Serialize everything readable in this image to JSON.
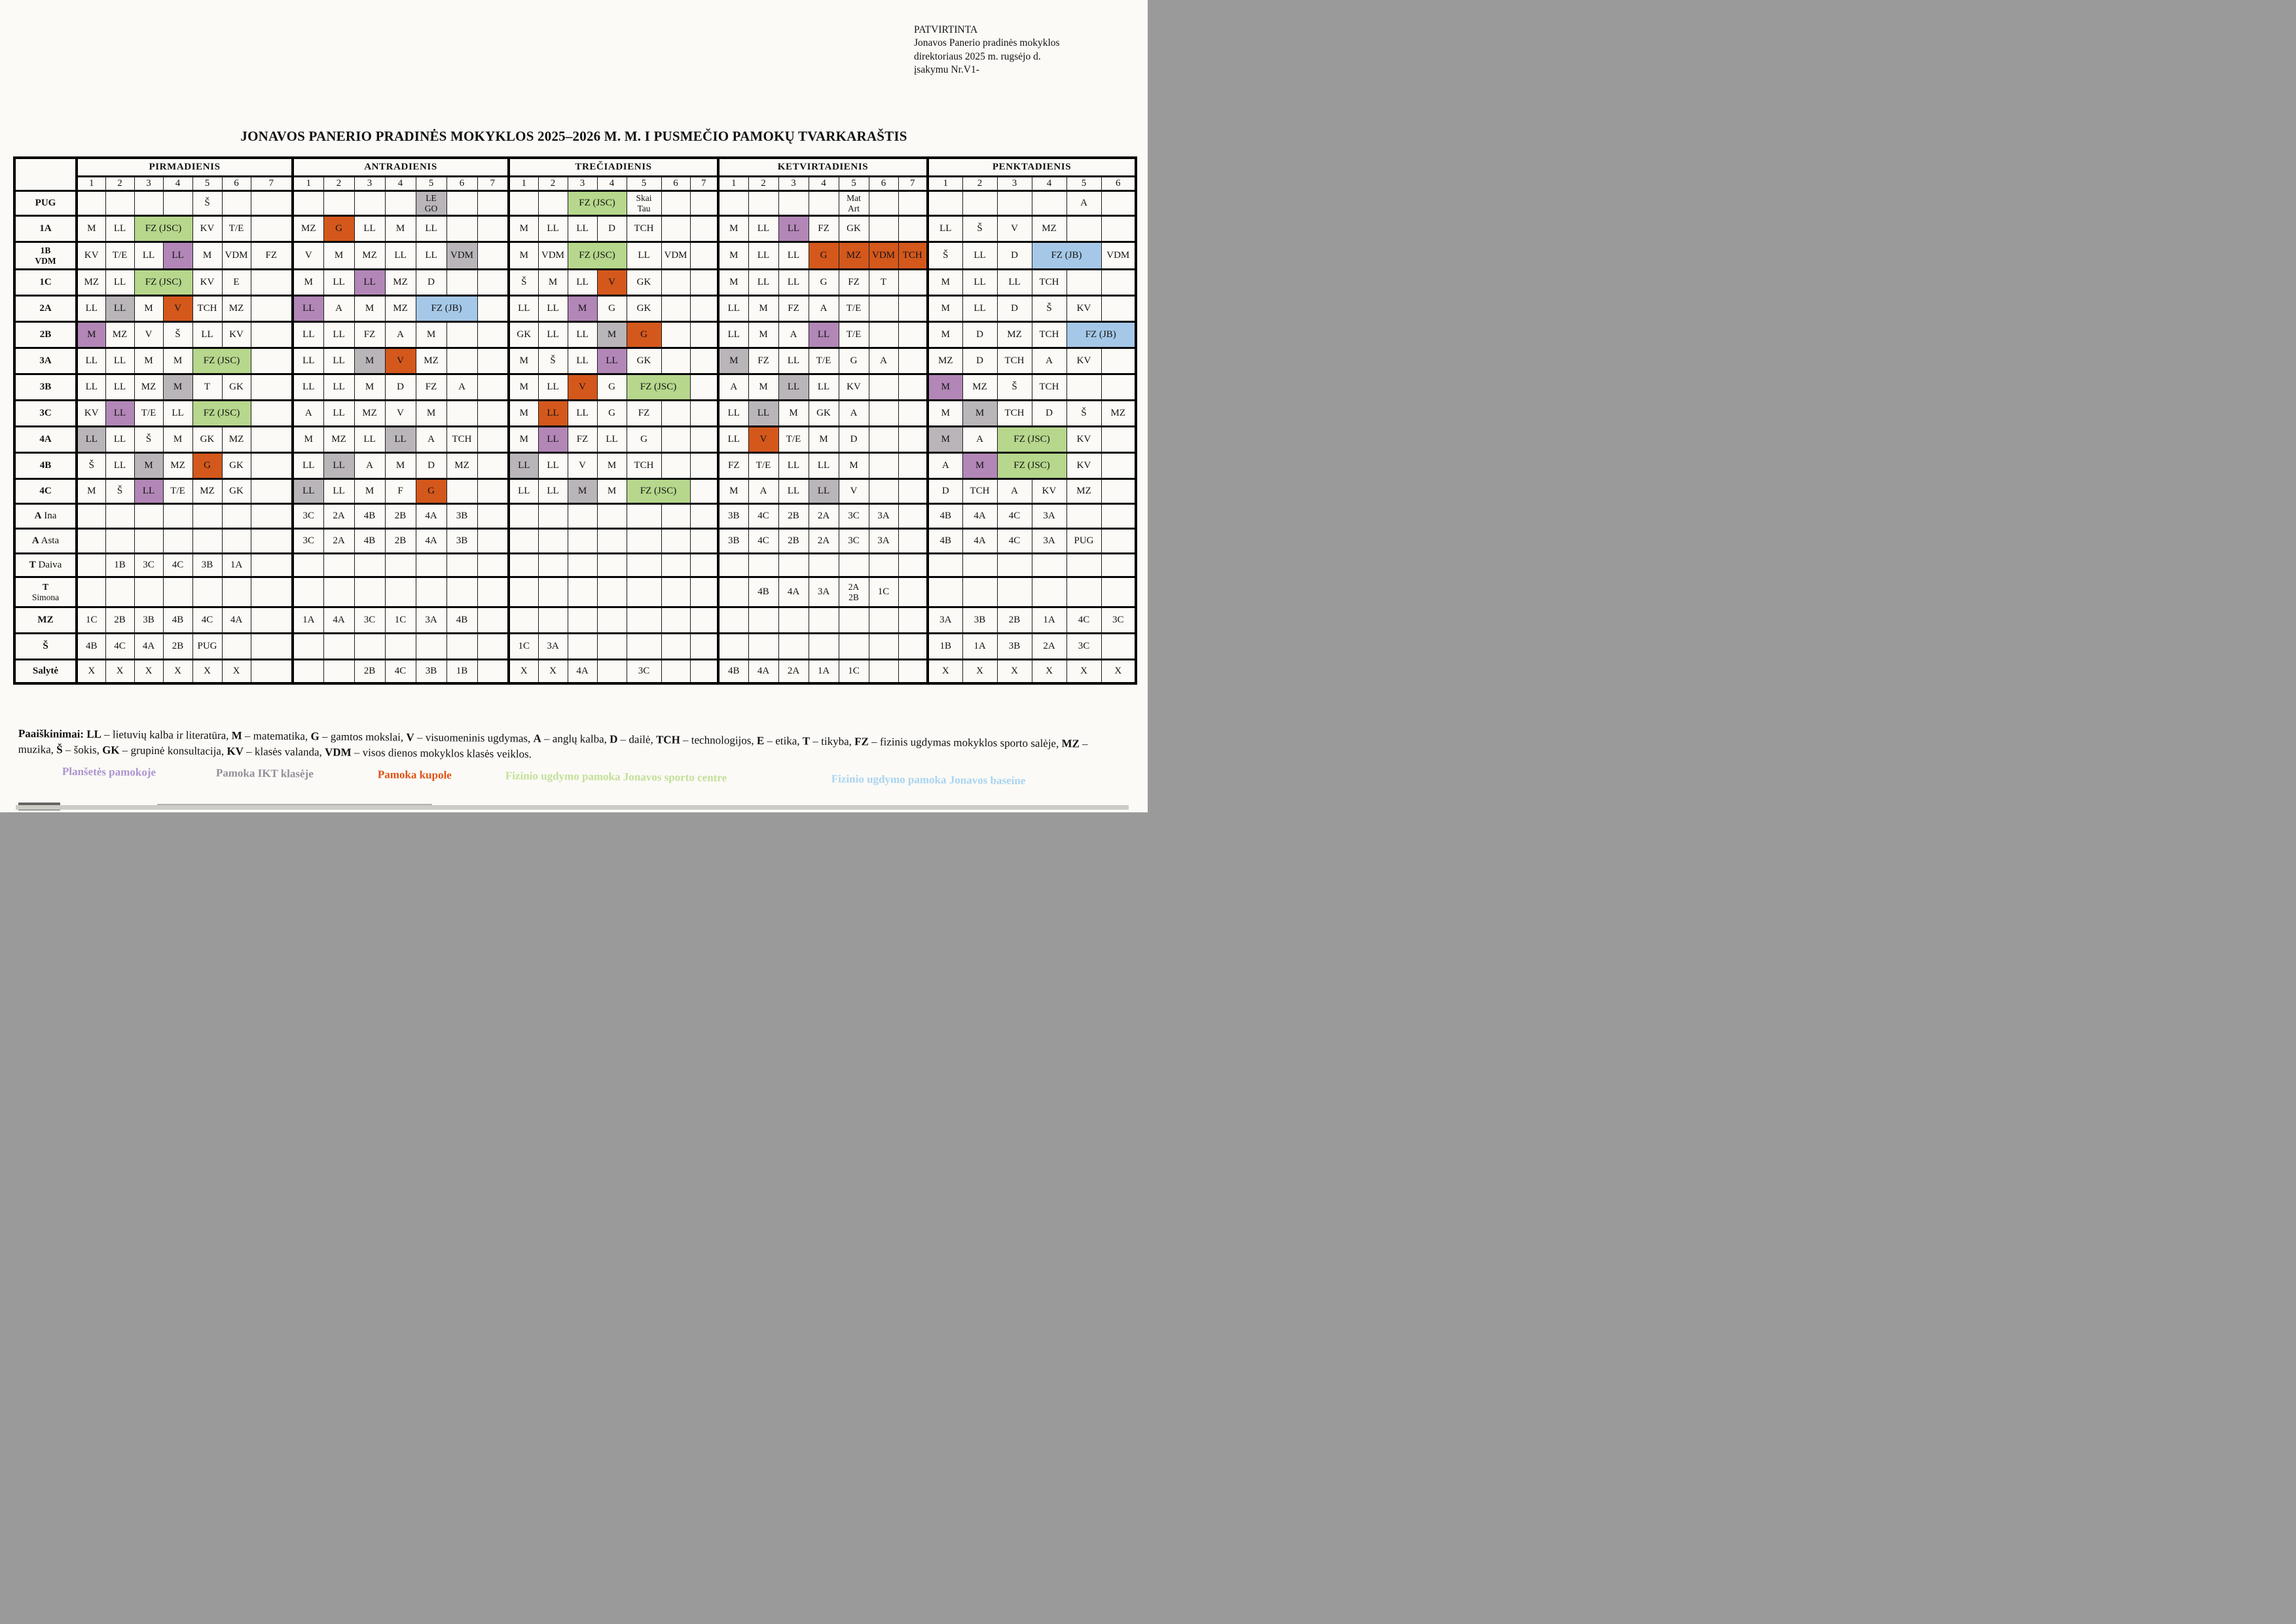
{
  "approval": {
    "line1": "PATVIRTINTA",
    "line2": "Jonavos Panerio pradinės mokyklos",
    "line3": "direktoriaus 2025 m. rugsėjo  d.",
    "line4": "įsakymu Nr.V1-"
  },
  "title": "JONAVOS PANERIO PRADINĖS MOKYKLOS 2025–2026 M. M. I PUSMEČIO PAMOKŲ TVARKARAŠTIS",
  "colors": {
    "purple": "#b287b7",
    "gray": "#b9b5b9",
    "orange": "#d4581c",
    "green": "#b6d78c",
    "blue": "#a6c8e8"
  },
  "days": [
    {
      "name": "PIRMADIENIS",
      "slots": 7
    },
    {
      "name": "ANTRADIENIS",
      "slots": 7
    },
    {
      "name": "TREČIADIENIS",
      "slots": 7
    },
    {
      "name": "KETVIRTADIENIS",
      "slots": 7
    },
    {
      "name": "PENKTADIENIS",
      "slots": 6
    }
  ],
  "rows": [
    {
      "label": {
        "b": "PUG",
        "r": ""
      },
      "cells": [
        [
          "",
          "",
          "",
          "",
          "Š",
          "",
          ""
        ],
        [
          "",
          "",
          "",
          "",
          {
            "t": "LE\nGO",
            "c": "gray"
          },
          "",
          ""
        ],
        [
          "",
          "",
          {
            "t": "FZ (JSC)",
            "c": "green",
            "s": 2
          },
          "Skai\nTau",
          "",
          ""
        ],
        [
          "",
          "",
          "",
          "",
          "Mat\nArt",
          "",
          ""
        ],
        [
          "",
          "",
          "",
          "",
          "A",
          ""
        ]
      ]
    },
    {
      "label": {
        "b": "1A",
        "r": ""
      },
      "cells": [
        [
          "M",
          "LL",
          {
            "t": "FZ (JSC)",
            "c": "green",
            "s": 2
          },
          "KV",
          "T/E",
          ""
        ],
        [
          "MZ",
          {
            "t": "G",
            "c": "orange"
          },
          "LL",
          "M",
          "LL",
          "",
          ""
        ],
        [
          "M",
          "LL",
          "LL",
          "D",
          "TCH",
          "",
          ""
        ],
        [
          "M",
          "LL",
          {
            "t": "LL",
            "c": "purple"
          },
          "FZ",
          "GK",
          "",
          ""
        ],
        [
          "LL",
          "Š",
          "V",
          "MZ",
          "",
          ""
        ]
      ]
    },
    {
      "label": {
        "b": "1B\nVDM",
        "r": ""
      },
      "cells": [
        [
          "KV",
          "T/E",
          "LL",
          {
            "t": "LL",
            "c": "purple"
          },
          "M",
          "VDM",
          "FZ"
        ],
        [
          "V",
          "M",
          "MZ",
          "LL",
          "LL",
          {
            "t": "VDM",
            "c": "gray"
          },
          ""
        ],
        [
          "M",
          "VDM",
          {
            "t": "FZ (JSC)",
            "c": "green",
            "s": 2
          },
          "LL",
          "VDM",
          ""
        ],
        [
          "M",
          "LL",
          "LL",
          {
            "t": "G",
            "c": "orange"
          },
          {
            "t": "MZ",
            "c": "orange"
          },
          {
            "t": "VDM",
            "c": "orange"
          },
          {
            "t": "TCH",
            "c": "orange"
          }
        ],
        [
          "Š",
          "LL",
          "D",
          {
            "t": "FZ (JB)",
            "c": "blue",
            "s": 2
          },
          "VDM"
        ]
      ]
    },
    {
      "label": {
        "b": "1C",
        "r": ""
      },
      "cells": [
        [
          "MZ",
          "LL",
          {
            "t": "FZ (JSC)",
            "c": "green",
            "s": 2
          },
          "KV",
          "E",
          ""
        ],
        [
          "M",
          "LL",
          {
            "t": "LL",
            "c": "purple"
          },
          "MZ",
          "D",
          "",
          ""
        ],
        [
          "Š",
          "M",
          "LL",
          {
            "t": "V",
            "c": "orange"
          },
          "GK",
          "",
          ""
        ],
        [
          "M",
          "LL",
          "LL",
          "G",
          "FZ",
          "T",
          ""
        ],
        [
          "M",
          "LL",
          "LL",
          "TCH",
          "",
          ""
        ]
      ]
    },
    {
      "label": {
        "b": "2A",
        "r": ""
      },
      "cells": [
        [
          "LL",
          {
            "t": "LL",
            "c": "gray"
          },
          "M",
          {
            "t": "V",
            "c": "orange"
          },
          "TCH",
          "MZ",
          ""
        ],
        [
          {
            "t": "LL",
            "c": "purple"
          },
          "A",
          "M",
          "MZ",
          {
            "t": "FZ (JB)",
            "c": "blue",
            "s": 2
          },
          ""
        ],
        [
          "LL",
          "LL",
          {
            "t": "M",
            "c": "purple"
          },
          "G",
          "GK",
          "",
          ""
        ],
        [
          "LL",
          "M",
          "FZ",
          "A",
          "T/E",
          "",
          ""
        ],
        [
          "M",
          "LL",
          "D",
          "Š",
          "KV",
          ""
        ]
      ]
    },
    {
      "label": {
        "b": "2B",
        "r": ""
      },
      "cells": [
        [
          {
            "t": "M",
            "c": "purple"
          },
          "MZ",
          "V",
          "Š",
          "LL",
          "KV",
          ""
        ],
        [
          "LL",
          "LL",
          "FZ",
          "A",
          "M",
          "",
          ""
        ],
        [
          "GK",
          "LL",
          "LL",
          {
            "t": "M",
            "c": "gray"
          },
          {
            "t": "G",
            "c": "orange"
          },
          "",
          ""
        ],
        [
          "LL",
          "M",
          "A",
          {
            "t": "LL",
            "c": "purple"
          },
          "T/E",
          "",
          ""
        ],
        [
          "M",
          "D",
          "MZ",
          "TCH",
          {
            "t": "FZ (JB)",
            "c": "blue",
            "s": 2
          }
        ]
      ]
    },
    {
      "label": {
        "b": "3A",
        "r": ""
      },
      "cells": [
        [
          "LL",
          "LL",
          "M",
          "M",
          {
            "t": "FZ (JSC)",
            "c": "green",
            "s": 2
          },
          ""
        ],
        [
          "LL",
          "LL",
          {
            "t": "M",
            "c": "gray"
          },
          {
            "t": "V",
            "c": "orange"
          },
          "MZ",
          "",
          ""
        ],
        [
          "M",
          "Š",
          "LL",
          {
            "t": "LL",
            "c": "purple"
          },
          "GK",
          "",
          ""
        ],
        [
          {
            "t": "M",
            "c": "gray"
          },
          "FZ",
          "LL",
          "T/E",
          "G",
          "A",
          ""
        ],
        [
          "MZ",
          "D",
          "TCH",
          "A",
          "KV",
          ""
        ]
      ]
    },
    {
      "label": {
        "b": "3B",
        "r": ""
      },
      "cells": [
        [
          "LL",
          "LL",
          "MZ",
          {
            "t": "M",
            "c": "gray"
          },
          "T",
          "GK",
          ""
        ],
        [
          "LL",
          "LL",
          "M",
          "D",
          "FZ",
          "A",
          ""
        ],
        [
          "M",
          "LL",
          {
            "t": "V",
            "c": "orange"
          },
          "G",
          {
            "t": "FZ (JSC)",
            "c": "green",
            "s": 2
          },
          ""
        ],
        [
          "A",
          "M",
          {
            "t": "LL",
            "c": "gray"
          },
          "LL",
          "KV",
          "",
          ""
        ],
        [
          {
            "t": "M",
            "c": "purple"
          },
          "MZ",
          "Š",
          "TCH",
          "",
          ""
        ]
      ]
    },
    {
      "label": {
        "b": "3C",
        "r": ""
      },
      "cells": [
        [
          "KV",
          {
            "t": "LL",
            "c": "purple"
          },
          "T/E",
          "LL",
          {
            "t": "FZ (JSC)",
            "c": "green",
            "s": 2
          },
          ""
        ],
        [
          "A",
          "LL",
          "MZ",
          "V",
          "M",
          "",
          ""
        ],
        [
          "M",
          {
            "t": "LL",
            "c": "orange"
          },
          "LL",
          "G",
          "FZ",
          "",
          ""
        ],
        [
          "LL",
          {
            "t": "LL",
            "c": "gray"
          },
          "M",
          "GK",
          "A",
          "",
          ""
        ],
        [
          "M",
          {
            "t": "M",
            "c": "gray"
          },
          "TCH",
          "D",
          "Š",
          "MZ"
        ]
      ]
    },
    {
      "label": {
        "b": "4A",
        "r": ""
      },
      "cells": [
        [
          {
            "t": "LL",
            "c": "gray"
          },
          "LL",
          "Š",
          "M",
          "GK",
          "MZ",
          ""
        ],
        [
          "M",
          "MZ",
          "LL",
          {
            "t": "LL",
            "c": "gray"
          },
          "A",
          "TCH",
          ""
        ],
        [
          "M",
          {
            "t": "LL",
            "c": "purple"
          },
          "FZ",
          "LL",
          "G",
          "",
          ""
        ],
        [
          "LL",
          {
            "t": "V",
            "c": "orange"
          },
          "T/E",
          "M",
          "D",
          "",
          ""
        ],
        [
          {
            "t": "M",
            "c": "gray"
          },
          "A",
          {
            "t": "FZ (JSC)",
            "c": "green",
            "s": 2
          },
          "KV",
          ""
        ]
      ]
    },
    {
      "label": {
        "b": "4B",
        "r": ""
      },
      "cells": [
        [
          "Š",
          "LL",
          {
            "t": "M",
            "c": "gray"
          },
          "MZ",
          {
            "t": "G",
            "c": "orange"
          },
          "GK",
          ""
        ],
        [
          "LL",
          {
            "t": "LL",
            "c": "gray"
          },
          "A",
          "M",
          "D",
          "MZ",
          ""
        ],
        [
          {
            "t": "LL",
            "c": "gray"
          },
          "LL",
          "V",
          "M",
          "TCH",
          "",
          ""
        ],
        [
          "FZ",
          "T/E",
          "LL",
          "LL",
          "M",
          "",
          ""
        ],
        [
          "A",
          {
            "t": "M",
            "c": "purple"
          },
          {
            "t": "FZ (JSC)",
            "c": "green",
            "s": 2
          },
          "KV",
          ""
        ]
      ]
    },
    {
      "label": {
        "b": "4C",
        "r": ""
      },
      "cells": [
        [
          "M",
          "Š",
          {
            "t": "LL",
            "c": "purple"
          },
          "T/E",
          "MZ",
          "GK",
          ""
        ],
        [
          {
            "t": "LL",
            "c": "gray"
          },
          "LL",
          "M",
          "F",
          {
            "t": "G",
            "c": "orange"
          },
          "",
          ""
        ],
        [
          "LL",
          "LL",
          {
            "t": "M",
            "c": "gray"
          },
          "M",
          {
            "t": "FZ (JSC)",
            "c": "green",
            "s": 2
          },
          ""
        ],
        [
          "M",
          "A",
          "LL",
          {
            "t": "LL",
            "c": "gray"
          },
          "V",
          "",
          ""
        ],
        [
          "D",
          "TCH",
          "A",
          "KV",
          "MZ",
          ""
        ]
      ]
    },
    {
      "label": {
        "b": "A",
        "r": " Ina"
      },
      "cells": [
        [
          "",
          "",
          "",
          "",
          "",
          "",
          ""
        ],
        [
          "3C",
          "2A",
          "4B",
          "2B",
          "4A",
          "3B",
          ""
        ],
        [
          "",
          "",
          "",
          "",
          "",
          "",
          ""
        ],
        [
          "3B",
          "4C",
          "2B",
          "2A",
          "3C",
          "3A",
          ""
        ],
        [
          "4B",
          "4A",
          "4C",
          "3A",
          "",
          ""
        ]
      ]
    },
    {
      "label": {
        "b": "A",
        "r": " Asta"
      },
      "cells": [
        [
          "",
          "",
          "",
          "",
          "",
          "",
          ""
        ],
        [
          "3C",
          "2A",
          "4B",
          "2B",
          "4A",
          "3B",
          ""
        ],
        [
          "",
          "",
          "",
          "",
          "",
          "",
          ""
        ],
        [
          "3B",
          "4C",
          "2B",
          "2A",
          "3C",
          "3A",
          ""
        ],
        [
          "4B",
          "4A",
          "4C",
          "3A",
          "PUG",
          ""
        ]
      ]
    },
    {
      "label": {
        "b": "T",
        "r": " Daiva"
      },
      "cells": [
        [
          "",
          "1B",
          "3C",
          "4C",
          "3B",
          "1A",
          ""
        ],
        [
          "",
          "",
          "",
          "",
          "",
          "",
          ""
        ],
        [
          "",
          "",
          "",
          "",
          "",
          "",
          ""
        ],
        [
          "",
          "",
          "",
          "",
          "",
          "",
          ""
        ],
        [
          "",
          "",
          "",
          "",
          "",
          ""
        ]
      ]
    },
    {
      "label": {
        "b": "T",
        "r": "\nSimona"
      },
      "cells": [
        [
          "",
          "",
          "",
          "",
          "",
          "",
          ""
        ],
        [
          "",
          "",
          "",
          "",
          "",
          "",
          ""
        ],
        [
          "",
          "",
          "",
          "",
          "",
          "",
          ""
        ],
        [
          "",
          "4B",
          "4A",
          "3A",
          "2A\n2B",
          "1C",
          ""
        ],
        [
          "",
          "",
          "",
          "",
          "",
          ""
        ]
      ]
    },
    {
      "label": {
        "b": "MZ",
        "r": ""
      },
      "cells": [
        [
          "1C",
          "2B",
          "3B",
          "4B",
          "4C",
          "4A",
          ""
        ],
        [
          "1A",
          "4A",
          "3C",
          "1C",
          "3A",
          "4B",
          ""
        ],
        [
          "",
          "",
          "",
          "",
          "",
          "",
          ""
        ],
        [
          "",
          "",
          "",
          "",
          "",
          "",
          ""
        ],
        [
          "3A",
          "3B",
          "2B",
          "1A",
          "4C",
          "3C"
        ]
      ]
    },
    {
      "label": {
        "b": "Š",
        "r": ""
      },
      "cells": [
        [
          "4B",
          "4C",
          "4A",
          "2B",
          "PUG",
          "",
          ""
        ],
        [
          "",
          "",
          "",
          "",
          "",
          "",
          ""
        ],
        [
          "1C",
          "3A",
          "",
          "",
          "",
          "",
          ""
        ],
        [
          "",
          "",
          "",
          "",
          "",
          "",
          ""
        ],
        [
          "1B",
          "1A",
          "3B",
          "2A",
          "3C",
          ""
        ]
      ]
    },
    {
      "label": {
        "b": "Salytė",
        "r": ""
      },
      "cells": [
        [
          "X",
          "X",
          "X",
          "X",
          "X",
          "X",
          ""
        ],
        [
          "",
          "",
          "2B",
          "4C",
          "3B",
          "1B",
          ""
        ],
        [
          "X",
          "X",
          "4A",
          "",
          "3C",
          "",
          ""
        ],
        [
          "4B",
          "4A",
          "2A",
          "1A",
          "1C",
          "",
          ""
        ],
        [
          "X",
          "X",
          "X",
          "X",
          "X",
          "X"
        ]
      ]
    }
  ],
  "legend": {
    "intro": "Paaiškinimai:",
    "items": [
      {
        "code": "LL",
        "desc": "lietuvių kalba ir literatūra"
      },
      {
        "code": "M",
        "desc": "matematika"
      },
      {
        "code": "G",
        "desc": "gamtos mokslai"
      },
      {
        "code": "V",
        "desc": "visuomeninis ugdymas"
      },
      {
        "code": "A",
        "desc": "anglų kalba"
      },
      {
        "code": "D",
        "desc": "dailė"
      },
      {
        "code": "TCH",
        "desc": "technologijos"
      },
      {
        "code": "E",
        "desc": "etika"
      },
      {
        "code": "T",
        "desc": "tikyba"
      },
      {
        "code": "FZ",
        "desc": "fizinis ugdymas mokyklos sporto salėje"
      },
      {
        "code": "MZ",
        "desc": "muzika"
      },
      {
        "code": "Š",
        "desc": "šokis"
      },
      {
        "code": "GK",
        "desc": "grupinė konsultacija"
      },
      {
        "code": "KV",
        "desc": "klasės valanda"
      },
      {
        "code": "VDM",
        "desc": "visos dienos mokyklos klasės veiklos"
      }
    ]
  },
  "color_legend": [
    {
      "label": "Planšetės pamokoje",
      "color": "#ab93d0"
    },
    {
      "label": "Pamoka IKT klasėje",
      "color": "#93909a"
    },
    {
      "label": "Pamoka kupole",
      "color": "#df5215"
    },
    {
      "label": "Fizinio ugdymo pamoka Jonavos sporto centre",
      "color": "#c3e098"
    },
    {
      "label": "Fizinio ugdymo pamoka Jonavos baseine",
      "color": "#a9d4f2"
    }
  ]
}
